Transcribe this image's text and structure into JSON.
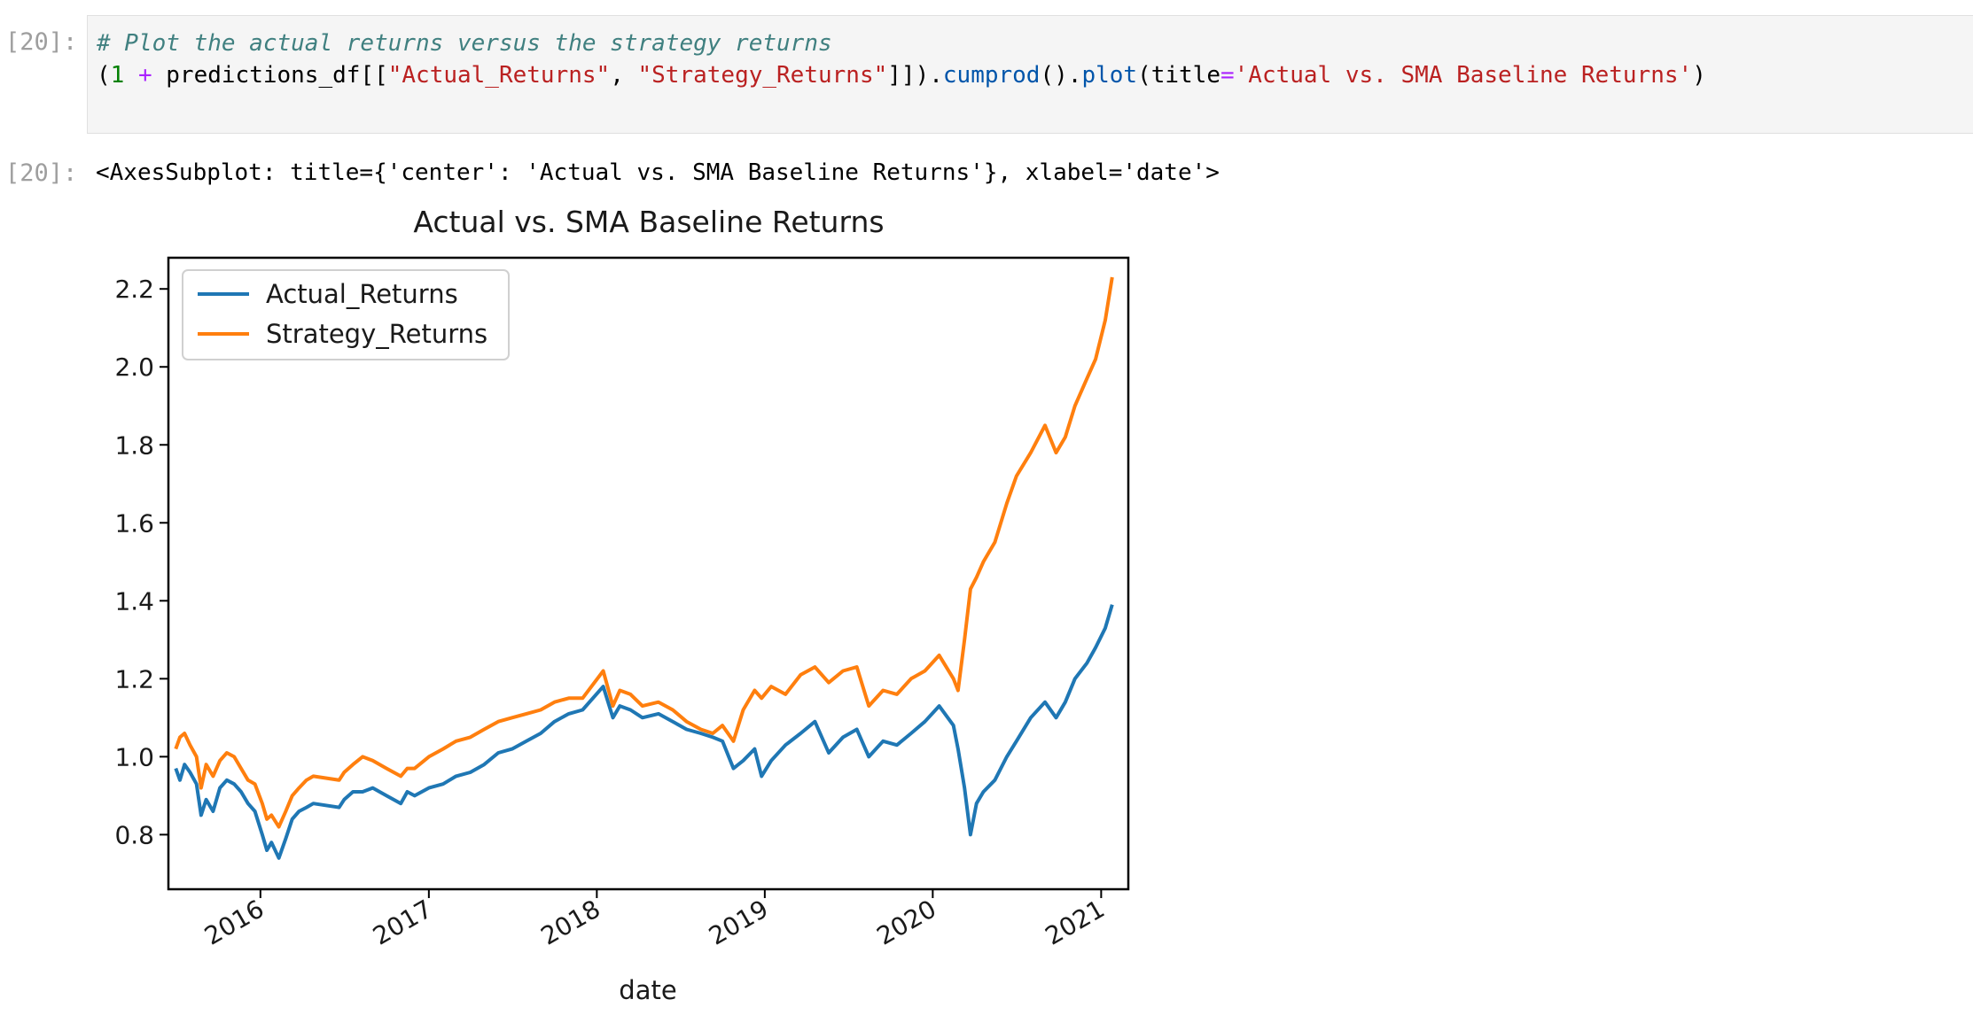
{
  "cell": {
    "input_prompt": "[20]:",
    "output_prompt": "[20]:",
    "code": {
      "comment": "# Plot the actual returns versus the strategy returns",
      "line2": {
        "open": "(",
        "num": "1",
        "space1": " ",
        "plus": "+",
        "part1": " predictions_df[[",
        "str1": "\"Actual_Returns\"",
        "comma": ", ",
        "str2": "\"Strategy_Returns\"",
        "part2": "]]).",
        "method1": "cumprod",
        "part3": "().",
        "method2": "plot",
        "part4": "(title",
        "eq": "=",
        "str3": "'Actual vs. SMA Baseline Returns'",
        "close": ")"
      }
    },
    "output_text": "<AxesSubplot: title={'center': 'Actual vs. SMA Baseline Returns'}, xlabel='date'>"
  },
  "chart_data": {
    "type": "line",
    "title": "Actual vs. SMA Baseline Returns",
    "xlabel": "date",
    "ylabel": "",
    "xlim": [
      "2015-06-15",
      "2021-03-01"
    ],
    "ylim": [
      0.66,
      2.28
    ],
    "yticks": [
      0.8,
      1.0,
      1.2,
      1.4,
      1.6,
      1.8,
      2.0,
      2.2
    ],
    "ytick_labels": [
      "0.8",
      "1.0",
      "1.2",
      "1.4",
      "1.6",
      "1.8",
      "2.0",
      "2.2"
    ],
    "xticks": [
      "2016-01-01",
      "2017-01-01",
      "2018-01-01",
      "2019-01-01",
      "2020-01-01",
      "2021-01-01"
    ],
    "xtick_labels": [
      "2016",
      "2017",
      "2018",
      "2019",
      "2020",
      "2021"
    ],
    "grid": false,
    "legend_position": "upper-left",
    "series": [
      {
        "name": "Actual_Returns",
        "color": "#1f77b4",
        "points": [
          [
            "2015-07-01",
            0.97
          ],
          [
            "2015-07-10",
            0.94
          ],
          [
            "2015-07-20",
            0.98
          ],
          [
            "2015-08-01",
            0.96
          ],
          [
            "2015-08-15",
            0.93
          ],
          [
            "2015-08-25",
            0.85
          ],
          [
            "2015-09-05",
            0.89
          ],
          [
            "2015-09-20",
            0.86
          ],
          [
            "2015-10-05",
            0.92
          ],
          [
            "2015-10-20",
            0.94
          ],
          [
            "2015-11-05",
            0.93
          ],
          [
            "2015-11-20",
            0.91
          ],
          [
            "2015-12-05",
            0.88
          ],
          [
            "2015-12-20",
            0.86
          ],
          [
            "2016-01-05",
            0.8
          ],
          [
            "2016-01-15",
            0.76
          ],
          [
            "2016-01-25",
            0.78
          ],
          [
            "2016-02-10",
            0.74
          ],
          [
            "2016-02-25",
            0.79
          ],
          [
            "2016-03-10",
            0.84
          ],
          [
            "2016-03-25",
            0.86
          ],
          [
            "2016-04-10",
            0.87
          ],
          [
            "2016-04-25",
            0.88
          ],
          [
            "2016-06-20",
            0.87
          ],
          [
            "2016-07-01",
            0.89
          ],
          [
            "2016-07-20",
            0.91
          ],
          [
            "2016-08-10",
            0.91
          ],
          [
            "2016-09-01",
            0.92
          ],
          [
            "2016-10-01",
            0.9
          ],
          [
            "2016-11-01",
            0.88
          ],
          [
            "2016-11-15",
            0.91
          ],
          [
            "2016-12-01",
            0.9
          ],
          [
            "2017-01-01",
            0.92
          ],
          [
            "2017-02-01",
            0.93
          ],
          [
            "2017-03-01",
            0.95
          ],
          [
            "2017-04-01",
            0.96
          ],
          [
            "2017-05-01",
            0.98
          ],
          [
            "2017-06-01",
            1.01
          ],
          [
            "2017-07-01",
            1.02
          ],
          [
            "2017-08-01",
            1.04
          ],
          [
            "2017-09-01",
            1.06
          ],
          [
            "2017-10-01",
            1.09
          ],
          [
            "2017-11-01",
            1.11
          ],
          [
            "2017-12-01",
            1.12
          ],
          [
            "2018-01-15",
            1.18
          ],
          [
            "2018-02-05",
            1.1
          ],
          [
            "2018-02-20",
            1.13
          ],
          [
            "2018-03-15",
            1.12
          ],
          [
            "2018-04-10",
            1.1
          ],
          [
            "2018-05-15",
            1.11
          ],
          [
            "2018-06-15",
            1.09
          ],
          [
            "2018-07-15",
            1.07
          ],
          [
            "2018-08-15",
            1.06
          ],
          [
            "2018-09-10",
            1.05
          ],
          [
            "2018-10-01",
            1.04
          ],
          [
            "2018-10-25",
            0.97
          ],
          [
            "2018-11-15",
            0.99
          ],
          [
            "2018-12-10",
            1.02
          ],
          [
            "2018-12-25",
            0.95
          ],
          [
            "2019-01-15",
            0.99
          ],
          [
            "2019-02-15",
            1.03
          ],
          [
            "2019-03-20",
            1.06
          ],
          [
            "2019-04-20",
            1.09
          ],
          [
            "2019-05-20",
            1.01
          ],
          [
            "2019-06-20",
            1.05
          ],
          [
            "2019-07-20",
            1.07
          ],
          [
            "2019-08-15",
            1.0
          ],
          [
            "2019-09-15",
            1.04
          ],
          [
            "2019-10-15",
            1.03
          ],
          [
            "2019-11-15",
            1.06
          ],
          [
            "2019-12-15",
            1.09
          ],
          [
            "2020-01-15",
            1.13
          ],
          [
            "2020-02-15",
            1.08
          ],
          [
            "2020-02-25",
            1.02
          ],
          [
            "2020-03-10",
            0.92
          ],
          [
            "2020-03-23",
            0.8
          ],
          [
            "2020-04-05",
            0.88
          ],
          [
            "2020-04-20",
            0.91
          ],
          [
            "2020-05-15",
            0.94
          ],
          [
            "2020-06-10",
            1.0
          ],
          [
            "2020-07-01",
            1.04
          ],
          [
            "2020-08-01",
            1.1
          ],
          [
            "2020-09-01",
            1.14
          ],
          [
            "2020-09-25",
            1.1
          ],
          [
            "2020-10-15",
            1.14
          ],
          [
            "2020-11-05",
            1.2
          ],
          [
            "2020-12-01",
            1.24
          ],
          [
            "2020-12-20",
            1.28
          ],
          [
            "2021-01-10",
            1.33
          ],
          [
            "2021-01-25",
            1.39
          ]
        ]
      },
      {
        "name": "Strategy_Returns",
        "color": "#ff7f0e",
        "points": [
          [
            "2015-07-01",
            1.02
          ],
          [
            "2015-07-10",
            1.05
          ],
          [
            "2015-07-20",
            1.06
          ],
          [
            "2015-08-01",
            1.03
          ],
          [
            "2015-08-15",
            1.0
          ],
          [
            "2015-08-25",
            0.92
          ],
          [
            "2015-09-05",
            0.98
          ],
          [
            "2015-09-20",
            0.95
          ],
          [
            "2015-10-05",
            0.99
          ],
          [
            "2015-10-20",
            1.01
          ],
          [
            "2015-11-05",
            1.0
          ],
          [
            "2015-11-20",
            0.97
          ],
          [
            "2015-12-05",
            0.94
          ],
          [
            "2015-12-20",
            0.93
          ],
          [
            "2016-01-05",
            0.88
          ],
          [
            "2016-01-15",
            0.84
          ],
          [
            "2016-01-25",
            0.85
          ],
          [
            "2016-02-10",
            0.82
          ],
          [
            "2016-02-25",
            0.86
          ],
          [
            "2016-03-10",
            0.9
          ],
          [
            "2016-03-25",
            0.92
          ],
          [
            "2016-04-10",
            0.94
          ],
          [
            "2016-04-25",
            0.95
          ],
          [
            "2016-06-20",
            0.94
          ],
          [
            "2016-07-01",
            0.96
          ],
          [
            "2016-07-20",
            0.98
          ],
          [
            "2016-08-10",
            1.0
          ],
          [
            "2016-09-01",
            0.99
          ],
          [
            "2016-10-01",
            0.97
          ],
          [
            "2016-11-01",
            0.95
          ],
          [
            "2016-11-15",
            0.97
          ],
          [
            "2016-12-01",
            0.97
          ],
          [
            "2017-01-01",
            1.0
          ],
          [
            "2017-02-01",
            1.02
          ],
          [
            "2017-03-01",
            1.04
          ],
          [
            "2017-04-01",
            1.05
          ],
          [
            "2017-05-01",
            1.07
          ],
          [
            "2017-06-01",
            1.09
          ],
          [
            "2017-07-01",
            1.1
          ],
          [
            "2017-08-01",
            1.11
          ],
          [
            "2017-09-01",
            1.12
          ],
          [
            "2017-10-01",
            1.14
          ],
          [
            "2017-11-01",
            1.15
          ],
          [
            "2017-12-01",
            1.15
          ],
          [
            "2018-01-15",
            1.22
          ],
          [
            "2018-02-05",
            1.13
          ],
          [
            "2018-02-20",
            1.17
          ],
          [
            "2018-03-15",
            1.16
          ],
          [
            "2018-04-10",
            1.13
          ],
          [
            "2018-05-15",
            1.14
          ],
          [
            "2018-06-15",
            1.12
          ],
          [
            "2018-07-15",
            1.09
          ],
          [
            "2018-08-15",
            1.07
          ],
          [
            "2018-09-10",
            1.06
          ],
          [
            "2018-10-01",
            1.08
          ],
          [
            "2018-10-25",
            1.04
          ],
          [
            "2018-11-15",
            1.12
          ],
          [
            "2018-12-10",
            1.17
          ],
          [
            "2018-12-25",
            1.15
          ],
          [
            "2019-01-15",
            1.18
          ],
          [
            "2019-02-15",
            1.16
          ],
          [
            "2019-03-20",
            1.21
          ],
          [
            "2019-04-20",
            1.23
          ],
          [
            "2019-05-20",
            1.19
          ],
          [
            "2019-06-20",
            1.22
          ],
          [
            "2019-07-20",
            1.23
          ],
          [
            "2019-08-15",
            1.13
          ],
          [
            "2019-09-15",
            1.17
          ],
          [
            "2019-10-15",
            1.16
          ],
          [
            "2019-11-15",
            1.2
          ],
          [
            "2019-12-15",
            1.22
          ],
          [
            "2020-01-15",
            1.26
          ],
          [
            "2020-02-15",
            1.2
          ],
          [
            "2020-02-25",
            1.17
          ],
          [
            "2020-03-10",
            1.3
          ],
          [
            "2020-03-23",
            1.43
          ],
          [
            "2020-04-05",
            1.46
          ],
          [
            "2020-04-20",
            1.5
          ],
          [
            "2020-05-15",
            1.55
          ],
          [
            "2020-06-10",
            1.65
          ],
          [
            "2020-07-01",
            1.72
          ],
          [
            "2020-08-01",
            1.78
          ],
          [
            "2020-09-01",
            1.85
          ],
          [
            "2020-09-25",
            1.78
          ],
          [
            "2020-10-15",
            1.82
          ],
          [
            "2020-11-05",
            1.9
          ],
          [
            "2020-12-01",
            1.97
          ],
          [
            "2020-12-20",
            2.02
          ],
          [
            "2021-01-10",
            2.12
          ],
          [
            "2021-01-25",
            2.23
          ]
        ]
      }
    ]
  }
}
